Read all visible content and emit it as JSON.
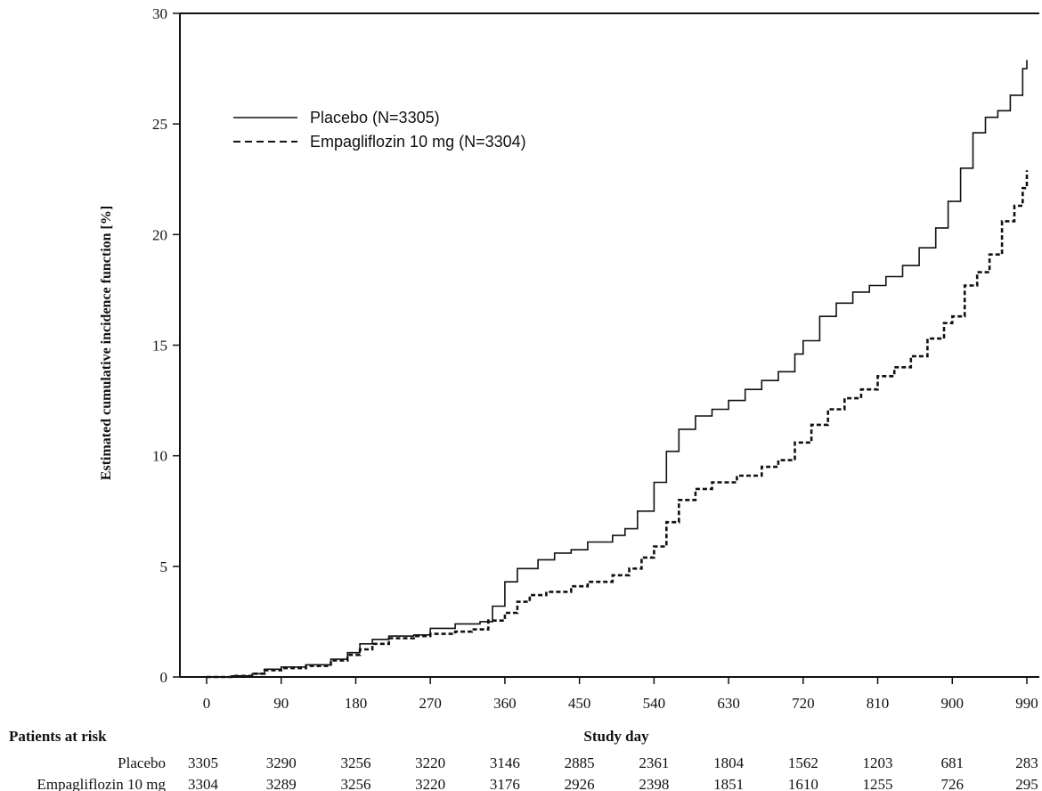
{
  "chart_data": {
    "type": "line",
    "title": "",
    "xlabel": "Study day",
    "ylabel": "Estimated cumulative incidence function [%]",
    "xlim": [
      0,
      990
    ],
    "ylim": [
      0,
      30
    ],
    "x_ticks": [
      0,
      90,
      180,
      270,
      360,
      450,
      540,
      630,
      720,
      810,
      900,
      990
    ],
    "y_ticks": [
      0,
      5,
      10,
      15,
      20,
      25,
      30
    ],
    "grid": false,
    "legend_position": "top-left",
    "series": [
      {
        "name": "Placebo (N=3305)",
        "line_style": "solid",
        "points": [
          [
            0,
            0
          ],
          [
            30,
            0.05
          ],
          [
            55,
            0.15
          ],
          [
            70,
            0.35
          ],
          [
            90,
            0.45
          ],
          [
            120,
            0.55
          ],
          [
            150,
            0.8
          ],
          [
            170,
            1.1
          ],
          [
            185,
            1.5
          ],
          [
            200,
            1.7
          ],
          [
            220,
            1.85
          ],
          [
            250,
            1.9
          ],
          [
            270,
            2.2
          ],
          [
            300,
            2.4
          ],
          [
            330,
            2.5
          ],
          [
            345,
            3.2
          ],
          [
            360,
            4.3
          ],
          [
            375,
            4.9
          ],
          [
            400,
            5.3
          ],
          [
            420,
            5.6
          ],
          [
            440,
            5.75
          ],
          [
            460,
            6.1
          ],
          [
            490,
            6.4
          ],
          [
            505,
            6.7
          ],
          [
            520,
            7.5
          ],
          [
            540,
            8.8
          ],
          [
            555,
            10.2
          ],
          [
            570,
            11.2
          ],
          [
            590,
            11.8
          ],
          [
            610,
            12.1
          ],
          [
            630,
            12.5
          ],
          [
            650,
            13.0
          ],
          [
            670,
            13.4
          ],
          [
            690,
            13.8
          ],
          [
            710,
            14.6
          ],
          [
            720,
            15.2
          ],
          [
            740,
            16.3
          ],
          [
            760,
            16.9
          ],
          [
            780,
            17.4
          ],
          [
            800,
            17.7
          ],
          [
            820,
            18.1
          ],
          [
            840,
            18.6
          ],
          [
            860,
            19.4
          ],
          [
            880,
            20.3
          ],
          [
            895,
            21.5
          ],
          [
            910,
            23.0
          ],
          [
            925,
            24.6
          ],
          [
            940,
            25.3
          ],
          [
            955,
            25.6
          ],
          [
            970,
            26.3
          ],
          [
            985,
            27.5
          ],
          [
            990,
            27.9
          ]
        ]
      },
      {
        "name": "Empagliflozin 10 mg (N=3304)",
        "line_style": "dashed",
        "points": [
          [
            0,
            0
          ],
          [
            30,
            0.05
          ],
          [
            55,
            0.15
          ],
          [
            70,
            0.3
          ],
          [
            90,
            0.4
          ],
          [
            120,
            0.5
          ],
          [
            150,
            0.75
          ],
          [
            170,
            1.0
          ],
          [
            185,
            1.25
          ],
          [
            200,
            1.5
          ],
          [
            220,
            1.75
          ],
          [
            250,
            1.85
          ],
          [
            270,
            1.95
          ],
          [
            300,
            2.05
          ],
          [
            320,
            2.15
          ],
          [
            340,
            2.55
          ],
          [
            360,
            2.9
          ],
          [
            375,
            3.4
          ],
          [
            390,
            3.7
          ],
          [
            410,
            3.85
          ],
          [
            440,
            4.1
          ],
          [
            460,
            4.3
          ],
          [
            490,
            4.6
          ],
          [
            510,
            4.9
          ],
          [
            525,
            5.4
          ],
          [
            540,
            5.9
          ],
          [
            555,
            7.0
          ],
          [
            570,
            8.0
          ],
          [
            590,
            8.5
          ],
          [
            610,
            8.8
          ],
          [
            640,
            9.1
          ],
          [
            670,
            9.5
          ],
          [
            690,
            9.8
          ],
          [
            710,
            10.6
          ],
          [
            730,
            11.4
          ],
          [
            750,
            12.1
          ],
          [
            770,
            12.6
          ],
          [
            790,
            13.0
          ],
          [
            810,
            13.6
          ],
          [
            830,
            14.0
          ],
          [
            850,
            14.5
          ],
          [
            870,
            15.3
          ],
          [
            890,
            16.0
          ],
          [
            900,
            16.3
          ],
          [
            915,
            17.7
          ],
          [
            930,
            18.3
          ],
          [
            945,
            19.1
          ],
          [
            960,
            20.6
          ],
          [
            975,
            21.3
          ],
          [
            985,
            22.1
          ],
          [
            990,
            22.9
          ]
        ]
      }
    ]
  },
  "risk_table": {
    "title": "Patients at risk",
    "days": [
      0,
      90,
      180,
      270,
      360,
      450,
      540,
      630,
      720,
      810,
      900,
      990
    ],
    "rows": [
      {
        "label": "Placebo",
        "values": [
          "3305",
          "3290",
          "3256",
          "3220",
          "3146",
          "2885",
          "2361",
          "1804",
          "1562",
          "1203",
          "681",
          "283"
        ]
      },
      {
        "label": "Empagliflozin 10 mg",
        "values": [
          "3304",
          "3289",
          "3256",
          "3220",
          "3176",
          "2926",
          "2398",
          "1851",
          "1610",
          "1255",
          "726",
          "295"
        ]
      }
    ]
  }
}
